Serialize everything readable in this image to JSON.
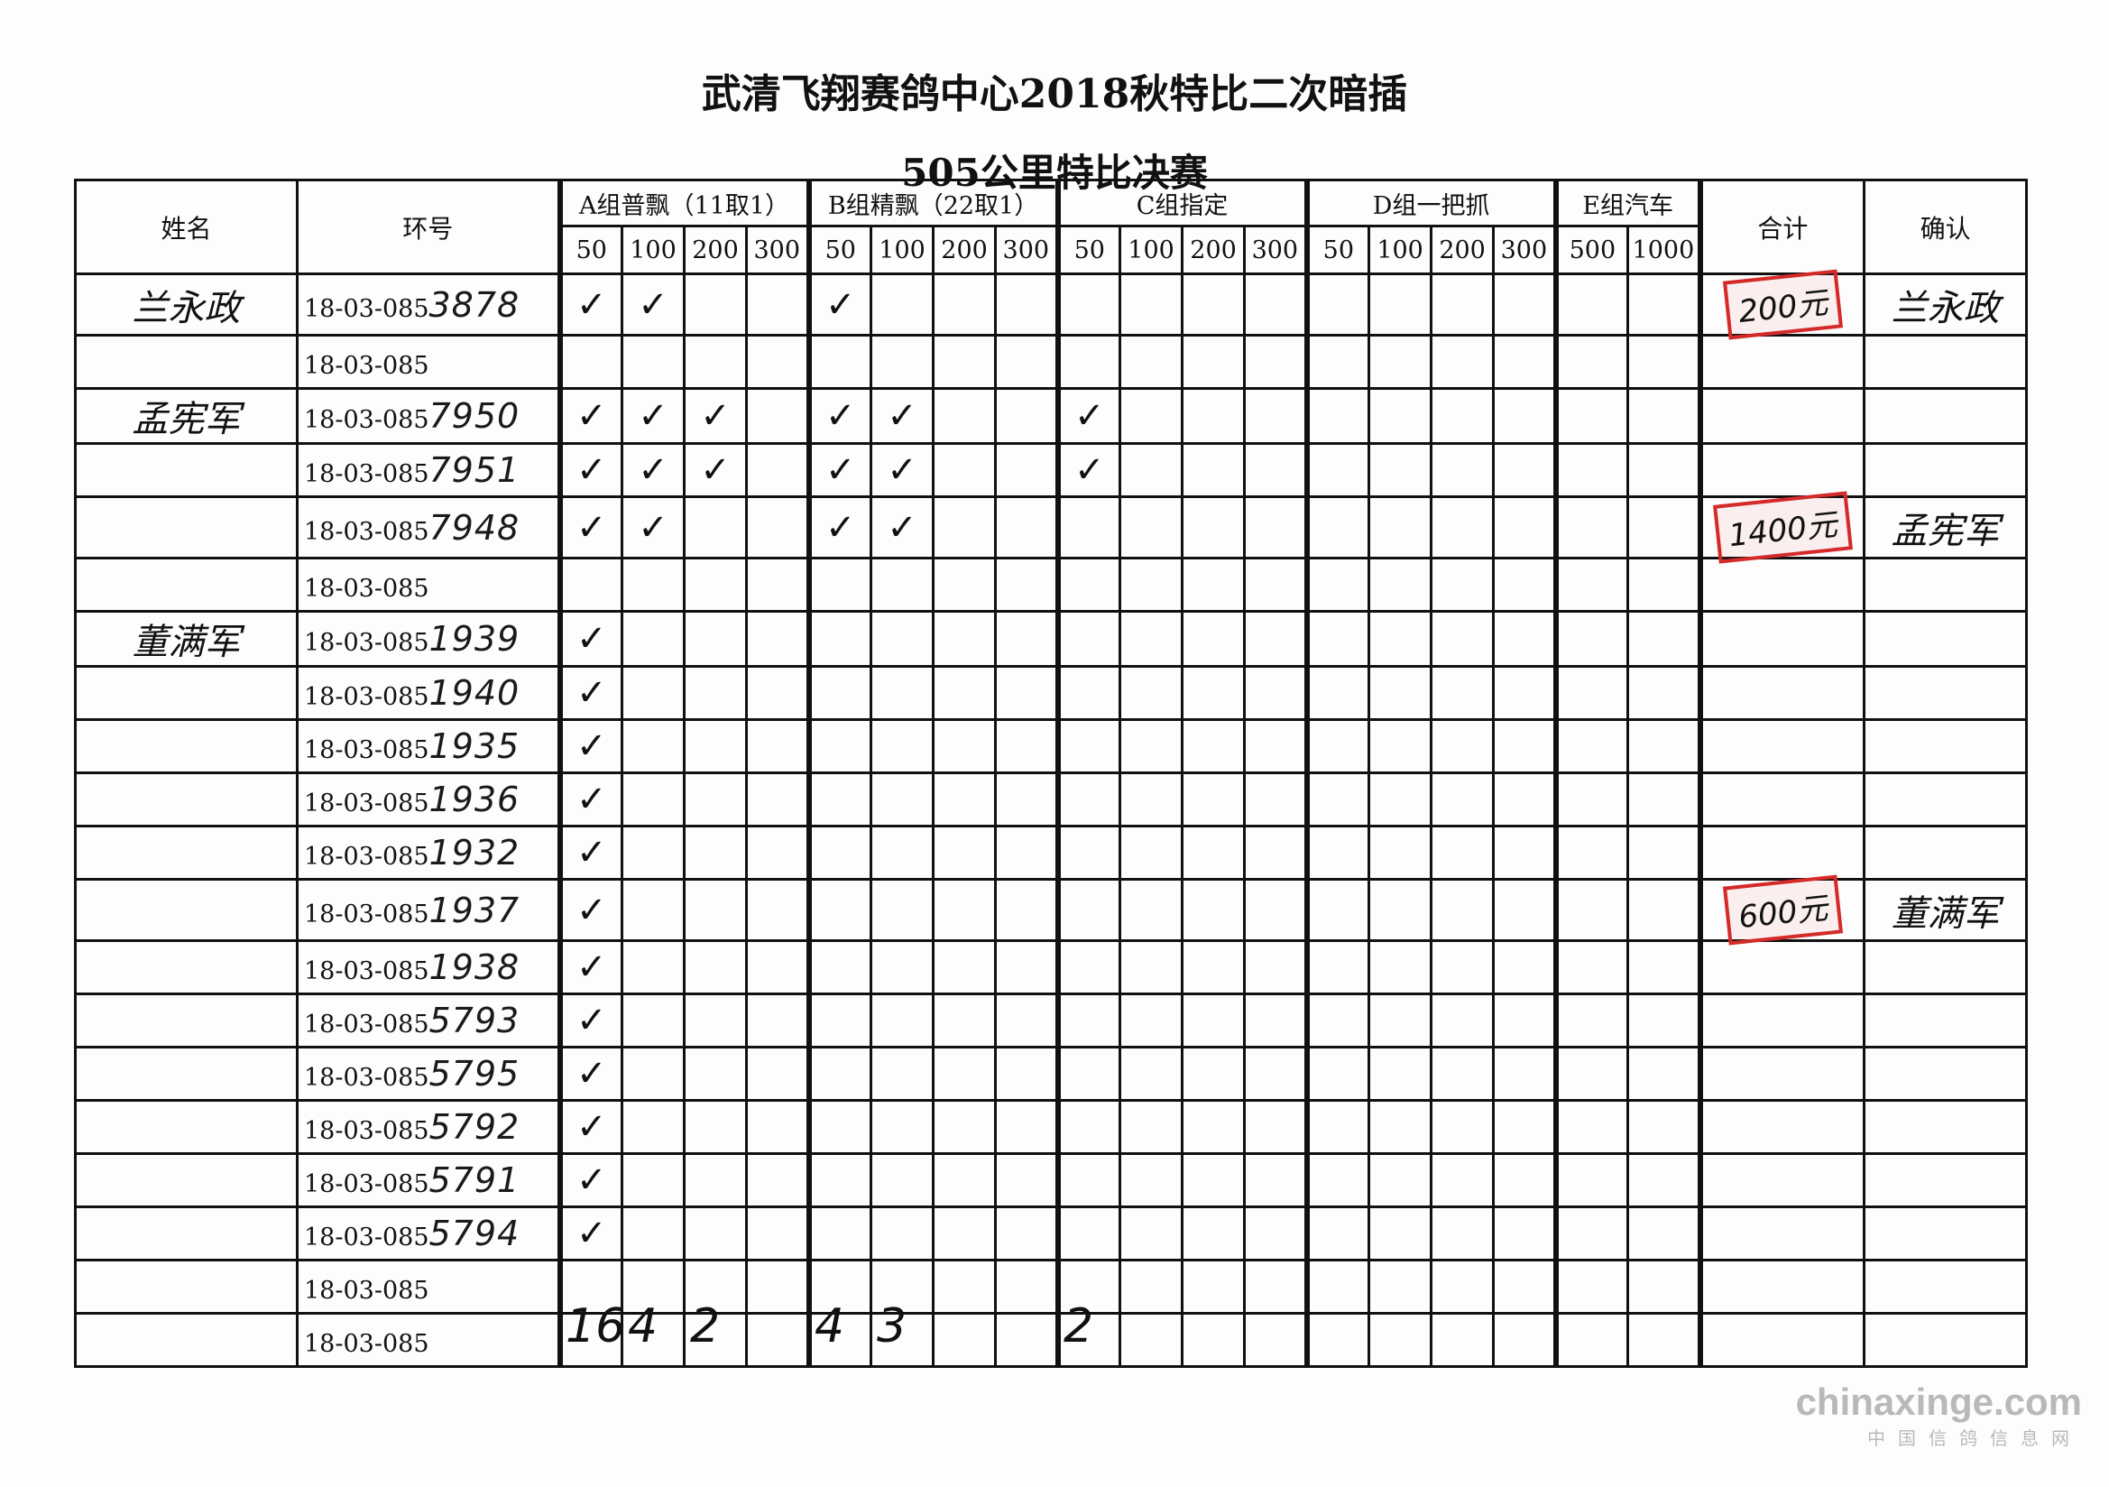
{
  "title": "武清飞翔赛鸽中心2018秋特比二次暗插",
  "subtitle": "505公里特比决赛",
  "headers": {
    "name": "姓名",
    "ring": "环号",
    "groups": [
      {
        "label": "A组普飘（11取1）",
        "cols": [
          "50",
          "100",
          "200",
          "300"
        ]
      },
      {
        "label": "B组精飘（22取1）",
        "cols": [
          "50",
          "100",
          "200",
          "300"
        ]
      },
      {
        "label": "C组指定",
        "cols": [
          "50",
          "100",
          "200",
          "300"
        ]
      },
      {
        "label": "D组一把抓",
        "cols": [
          "50",
          "100",
          "200",
          "300"
        ]
      },
      {
        "label": "E组汽车",
        "cols": [
          "500",
          "1000"
        ]
      }
    ],
    "total": "合计",
    "confirm": "确认"
  },
  "check_mark": "✓",
  "ring_prefix": "18-03-085",
  "rows": [
    {
      "name": "兰永政",
      "ring_suffix": "3878",
      "checks": [
        "A50",
        "A100",
        "B50"
      ]
    },
    {
      "name": "",
      "ring_suffix": "",
      "checks": []
    },
    {
      "name": "孟宪军",
      "ring_suffix": "7950",
      "checks": [
        "A50",
        "A100",
        "A200",
        "B50",
        "B100",
        "C50"
      ]
    },
    {
      "name": "",
      "ring_suffix": "7951",
      "checks": [
        "A50",
        "A100",
        "A200",
        "B50",
        "B100",
        "C50"
      ]
    },
    {
      "name": "",
      "ring_suffix": "7948",
      "checks": [
        "A50",
        "A100",
        "B50",
        "B100"
      ]
    },
    {
      "name": "",
      "ring_suffix": "",
      "checks": []
    },
    {
      "name": "董满军",
      "ring_suffix": "1939",
      "checks": [
        "A50"
      ]
    },
    {
      "name": "",
      "ring_suffix": "1940",
      "checks": [
        "A50"
      ]
    },
    {
      "name": "",
      "ring_suffix": "1935",
      "checks": [
        "A50"
      ]
    },
    {
      "name": "",
      "ring_suffix": "1936",
      "checks": [
        "A50"
      ]
    },
    {
      "name": "",
      "ring_suffix": "1932",
      "checks": [
        "A50"
      ]
    },
    {
      "name": "",
      "ring_suffix": "1937",
      "checks": [
        "A50"
      ]
    },
    {
      "name": "",
      "ring_suffix": "1938",
      "checks": [
        "A50"
      ]
    },
    {
      "name": "",
      "ring_suffix": "5793",
      "checks": [
        "A50"
      ]
    },
    {
      "name": "",
      "ring_suffix": "5795",
      "checks": [
        "A50"
      ]
    },
    {
      "name": "",
      "ring_suffix": "5792",
      "checks": [
        "A50"
      ]
    },
    {
      "name": "",
      "ring_suffix": "5791",
      "checks": [
        "A50"
      ]
    },
    {
      "name": "",
      "ring_suffix": "5794",
      "checks": [
        "A50"
      ]
    },
    {
      "name": "",
      "ring_suffix": "",
      "checks": []
    },
    {
      "name": "",
      "ring_suffix": "",
      "checks": []
    }
  ],
  "totals": [
    {
      "row": 0,
      "amount": "200元",
      "confirm": "兰永政"
    },
    {
      "row": 4,
      "amount": "1400元",
      "confirm": "孟宪军"
    },
    {
      "row": 11,
      "amount": "600元",
      "confirm": "董满军"
    }
  ],
  "column_counts": [
    {
      "col": "A50",
      "count": "16"
    },
    {
      "col": "A100",
      "count": "4"
    },
    {
      "col": "A200",
      "count": "2"
    },
    {
      "col": "B50",
      "count": "4"
    },
    {
      "col": "B100",
      "count": "3"
    },
    {
      "col": "C50",
      "count": "2"
    }
  ],
  "watermark": {
    "en": "chinaxinge.com",
    "cn": "中国信鸽信息网"
  },
  "colors": {
    "stamp": "#d42a2a",
    "ink": "#111111",
    "watermark": "#b9b9b9"
  }
}
